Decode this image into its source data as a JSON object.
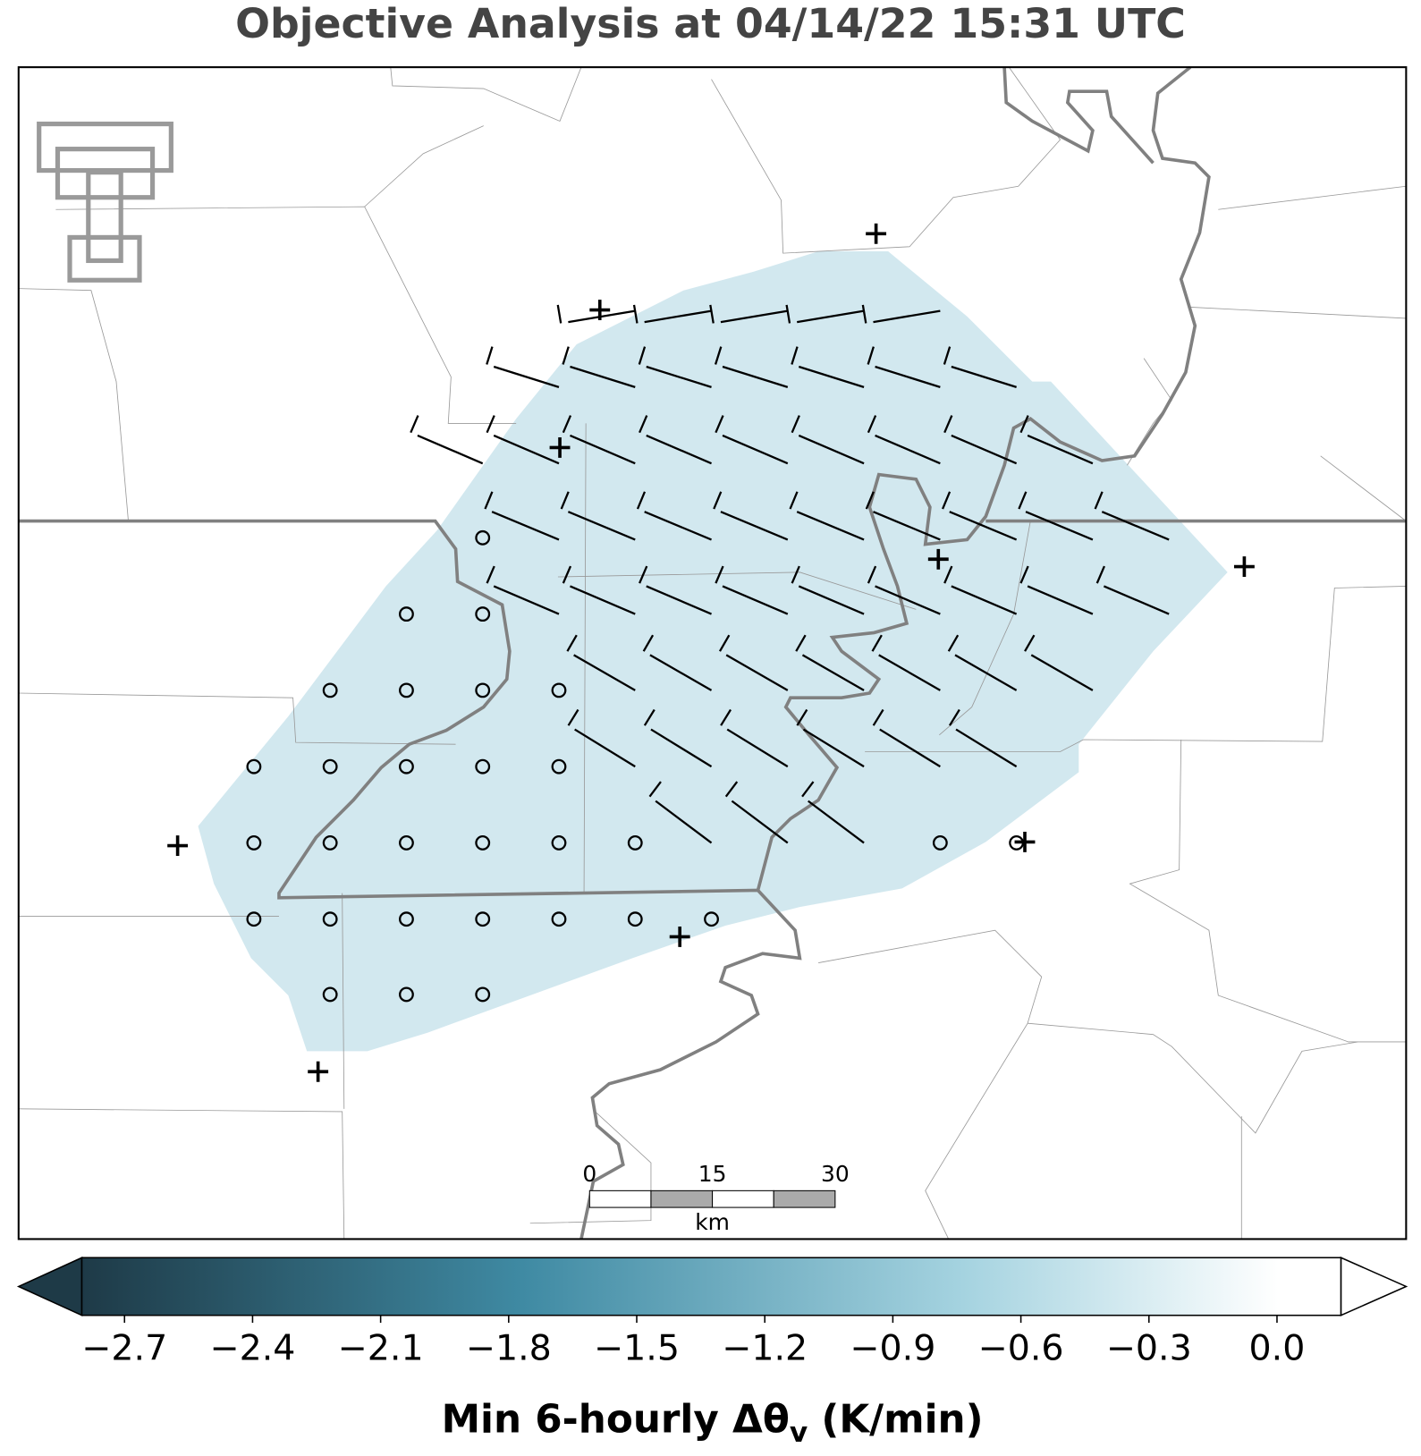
{
  "title": "Objective Analysis at 04/14/22 15:31 UTC",
  "scale_bar": {
    "labels": [
      "0",
      "15",
      "30"
    ],
    "unit": "km"
  },
  "colorbar": {
    "lim": [
      -2.8,
      0.15
    ],
    "ticks": [
      {
        "value": -2.7,
        "label": "−2.7"
      },
      {
        "value": -2.4,
        "label": "−2.4"
      },
      {
        "value": -2.1,
        "label": "−2.1"
      },
      {
        "value": -1.8,
        "label": "−1.8"
      },
      {
        "value": -1.5,
        "label": "−1.5"
      },
      {
        "value": -1.2,
        "label": "−1.2"
      },
      {
        "value": -0.9,
        "label": "−0.9"
      },
      {
        "value": -0.6,
        "label": "−0.6"
      },
      {
        "value": -0.3,
        "label": "−0.3"
      },
      {
        "value": 0,
        "label": "0.0"
      }
    ],
    "label_parts": [
      "Min 6-hourly Δθ",
      "v",
      " (K/min)"
    ]
  }
}
